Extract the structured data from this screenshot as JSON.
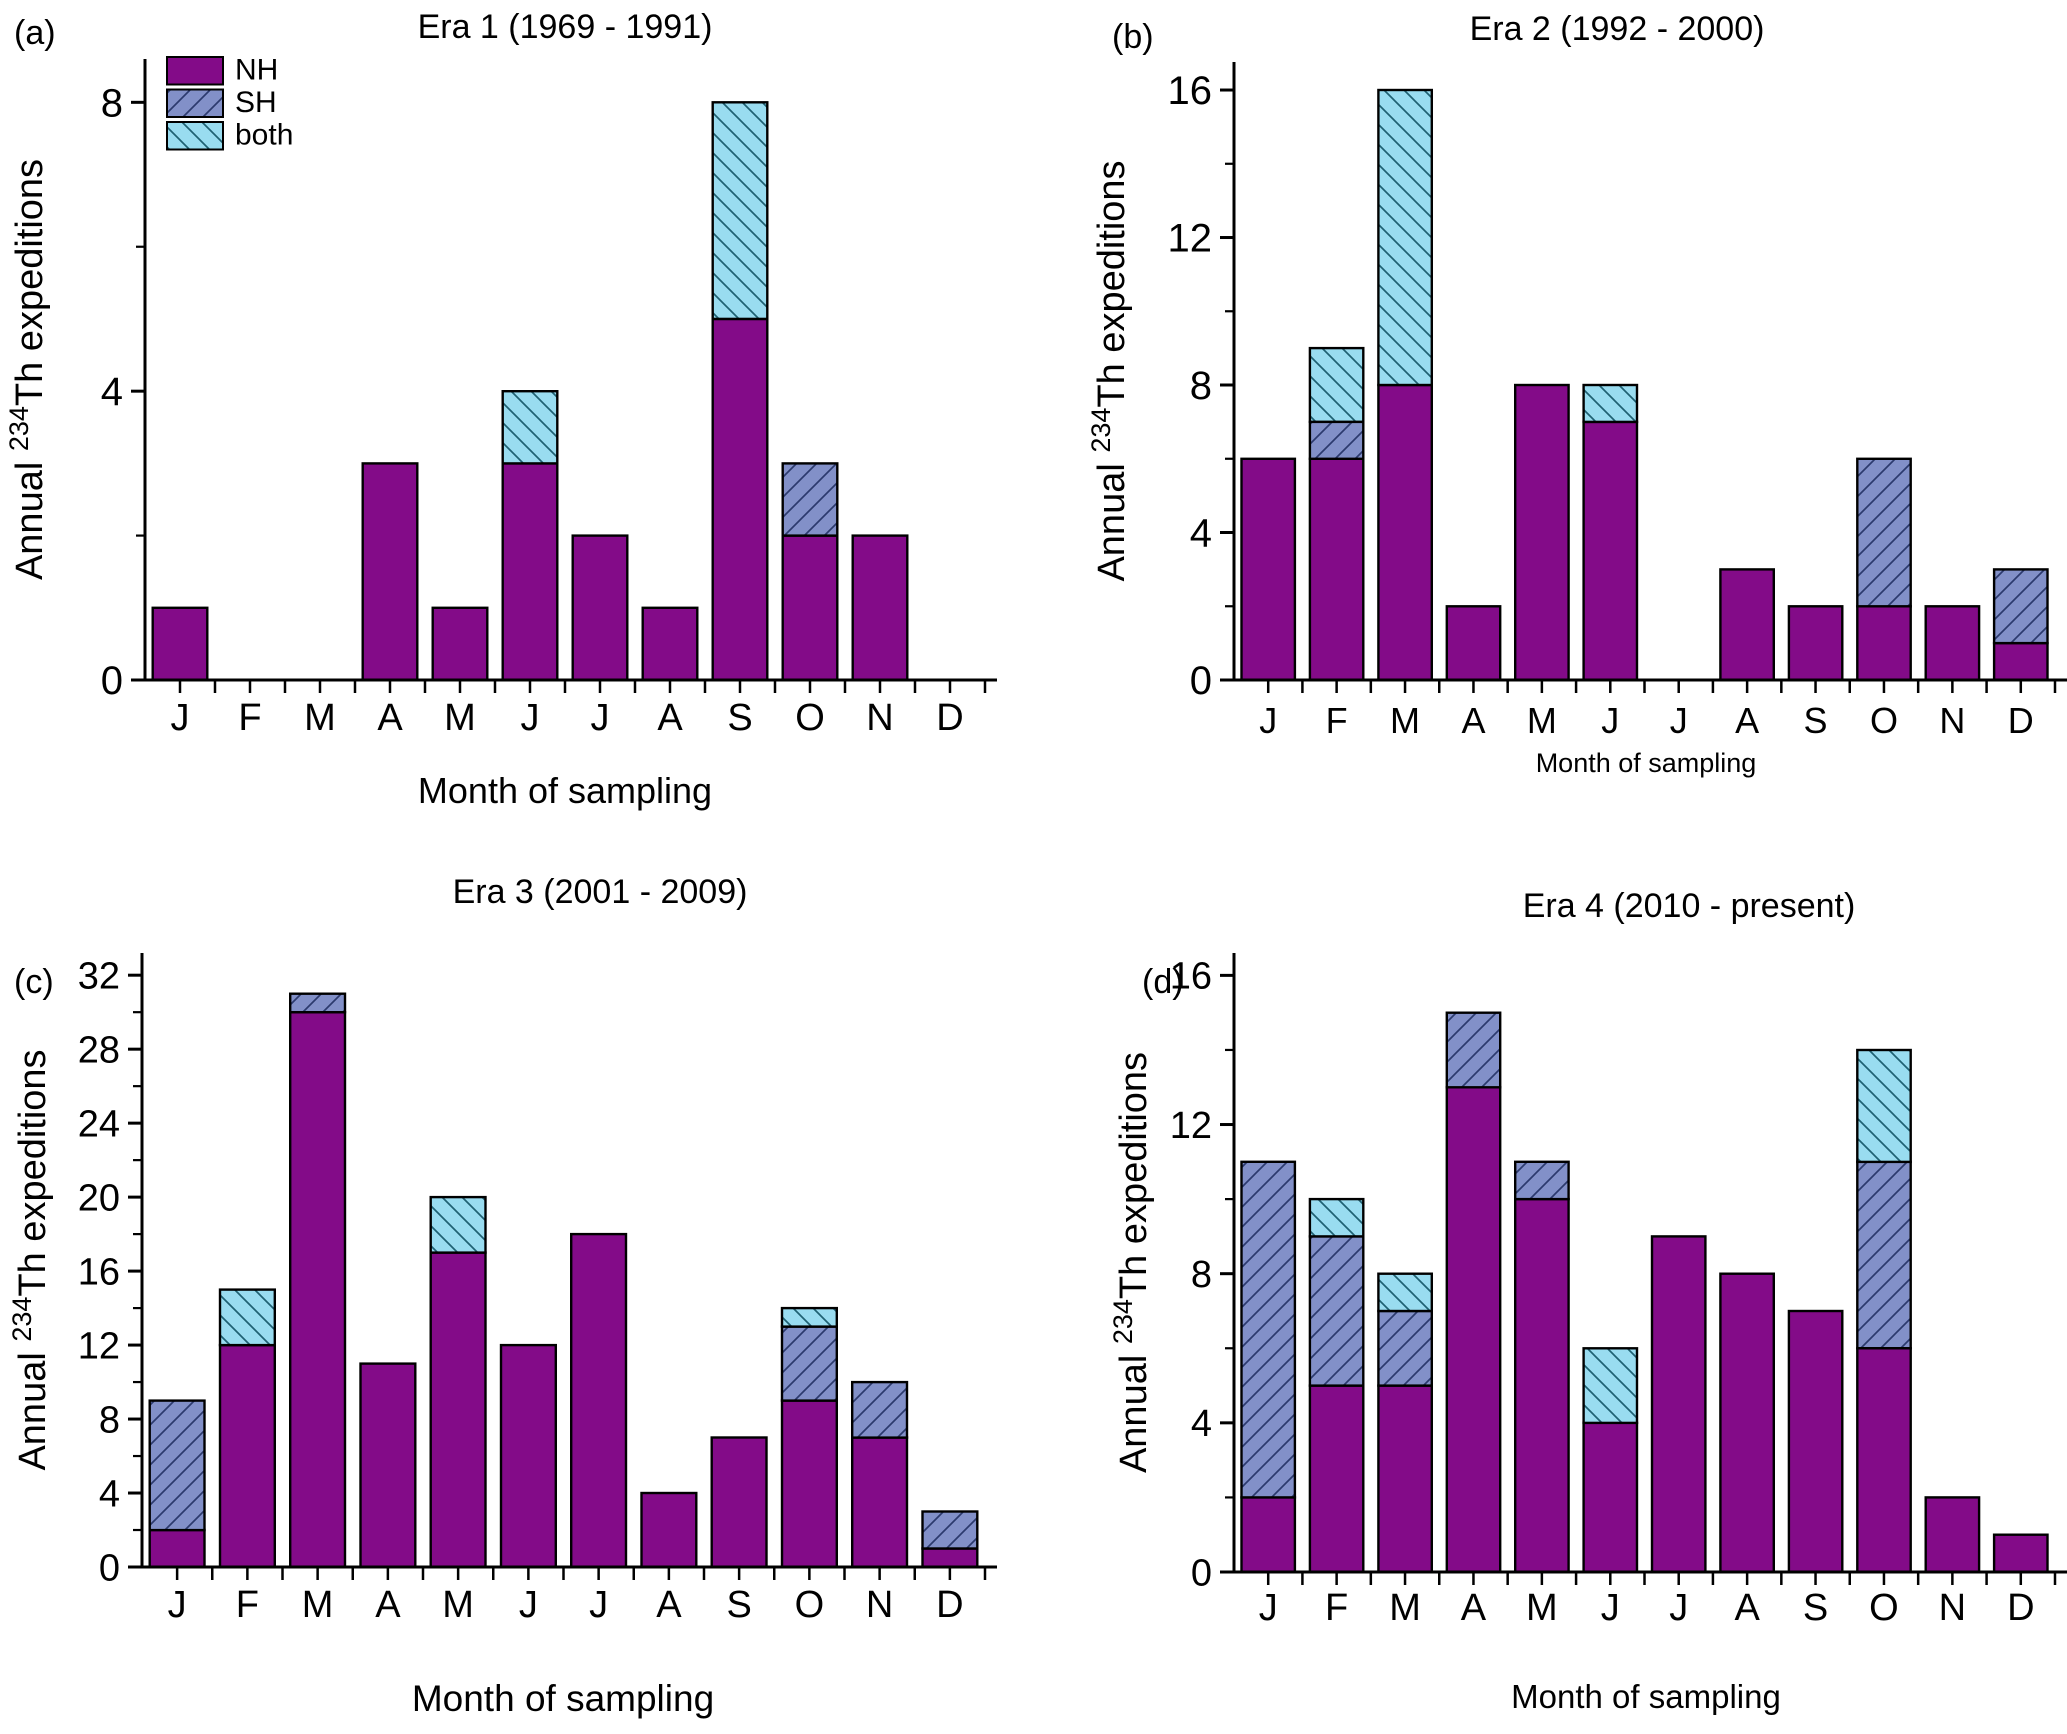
{
  "colors": {
    "NH": "#830b88",
    "SH": "#8290c8",
    "SH_hatch_line": "#2c3a6e",
    "both": "#99dcf0",
    "both_hatch_line": "#1f6173",
    "bar_outline": "#000000",
    "axis": "#000000",
    "background": "#ffffff",
    "text": "#000000"
  },
  "legend": {
    "items": [
      {
        "label": "NH",
        "color": "#830b88",
        "hatch": "none"
      },
      {
        "label": "SH",
        "color": "#8290c8",
        "hatch": "forward-diagonal"
      },
      {
        "label": "both",
        "color": "#99dcf0",
        "hatch": "backward-diagonal"
      }
    ],
    "position": "top-left-inside-panel-a"
  },
  "chart_data": [
    {
      "type": "bar",
      "stacked": true,
      "panel_label": "(a)",
      "title": "Era 1 (1969 - 1991)",
      "xlabel": "Month of sampling",
      "ylabel": {
        "prefix": "Annual ",
        "superscript": "234",
        "suffix": "Th expeditions"
      },
      "categories": [
        "J",
        "F",
        "M",
        "A",
        "M",
        "J",
        "J",
        "A",
        "S",
        "O",
        "N",
        "D"
      ],
      "series": [
        {
          "name": "NH",
          "values": [
            1,
            0,
            0,
            3,
            1,
            3,
            2,
            1,
            5,
            2,
            2,
            0
          ]
        },
        {
          "name": "SH",
          "values": [
            0,
            0,
            0,
            0,
            0,
            0,
            0,
            0,
            0,
            1,
            0,
            0
          ]
        },
        {
          "name": "both",
          "values": [
            0,
            0,
            0,
            0,
            0,
            1,
            0,
            0,
            3,
            0,
            0,
            0
          ]
        }
      ],
      "ylim": [
        0,
        8
      ],
      "yticks": [
        0,
        4,
        8
      ],
      "minor_tick_step": 2,
      "grid": false,
      "show_legend": true
    },
    {
      "type": "bar",
      "stacked": true,
      "panel_label": "(b)",
      "title": "Era 2 (1992 - 2000)",
      "xlabel": "Month of sampling",
      "ylabel": {
        "prefix": "Annual ",
        "superscript": "234",
        "suffix": "Th expeditions"
      },
      "categories": [
        "J",
        "F",
        "M",
        "A",
        "M",
        "J",
        "J",
        "A",
        "S",
        "O",
        "N",
        "D"
      ],
      "series": [
        {
          "name": "NH",
          "values": [
            6,
            6,
            8,
            2,
            8,
            7,
            0,
            3,
            2,
            2,
            2,
            1
          ]
        },
        {
          "name": "SH",
          "values": [
            0,
            1,
            0,
            0,
            0,
            0,
            0,
            0,
            0,
            4,
            0,
            2
          ]
        },
        {
          "name": "both",
          "values": [
            0,
            2,
            8,
            0,
            0,
            1,
            0,
            0,
            0,
            0,
            0,
            0
          ]
        }
      ],
      "ylim": [
        0,
        16
      ],
      "yticks": [
        0,
        4,
        8,
        12,
        16
      ],
      "minor_tick_step": 2,
      "grid": false,
      "show_legend": false
    },
    {
      "type": "bar",
      "stacked": true,
      "panel_label": "(c)",
      "title": "Era 3 (2001 - 2009)",
      "xlabel": "Month of sampling",
      "ylabel": {
        "prefix": "Annual ",
        "superscript": "234",
        "suffix": "Th expeditions"
      },
      "categories": [
        "J",
        "F",
        "M",
        "A",
        "M",
        "J",
        "J",
        "A",
        "S",
        "O",
        "N",
        "D"
      ],
      "series": [
        {
          "name": "NH",
          "values": [
            2,
            12,
            30,
            11,
            17,
            12,
            18,
            4,
            7,
            9,
            7,
            1
          ]
        },
        {
          "name": "SH",
          "values": [
            7,
            0,
            1,
            0,
            0,
            0,
            0,
            0,
            0,
            4,
            3,
            2
          ]
        },
        {
          "name": "both",
          "values": [
            0,
            3,
            0,
            0,
            3,
            0,
            0,
            0,
            0,
            1,
            0,
            0
          ]
        }
      ],
      "ylim": [
        0,
        32
      ],
      "yticks": [
        0,
        4,
        8,
        12,
        16,
        20,
        24,
        28,
        32
      ],
      "minor_tick_step": 2,
      "grid": false,
      "show_legend": false
    },
    {
      "type": "bar",
      "stacked": true,
      "panel_label": "(d)",
      "title": "Era 4 (2010 - present)",
      "xlabel": "Month of sampling",
      "ylabel": {
        "prefix": "Annual ",
        "superscript": "234",
        "suffix": "Th expeditions"
      },
      "categories": [
        "J",
        "F",
        "M",
        "A",
        "M",
        "J",
        "J",
        "A",
        "S",
        "O",
        "N",
        "D"
      ],
      "series": [
        {
          "name": "NH",
          "values": [
            2,
            5,
            5,
            13,
            10,
            4,
            9,
            8,
            7,
            6,
            2,
            1
          ]
        },
        {
          "name": "SH",
          "values": [
            9,
            4,
            2,
            2,
            1,
            0,
            0,
            0,
            0,
            5,
            0,
            0
          ]
        },
        {
          "name": "both",
          "values": [
            0,
            1,
            1,
            0,
            0,
            2,
            0,
            0,
            0,
            3,
            0,
            0
          ]
        }
      ],
      "ylim": [
        0,
        16
      ],
      "yticks": [
        0,
        4,
        8,
        12,
        16
      ],
      "minor_tick_step": 2,
      "grid": false,
      "show_legend": false
    }
  ]
}
